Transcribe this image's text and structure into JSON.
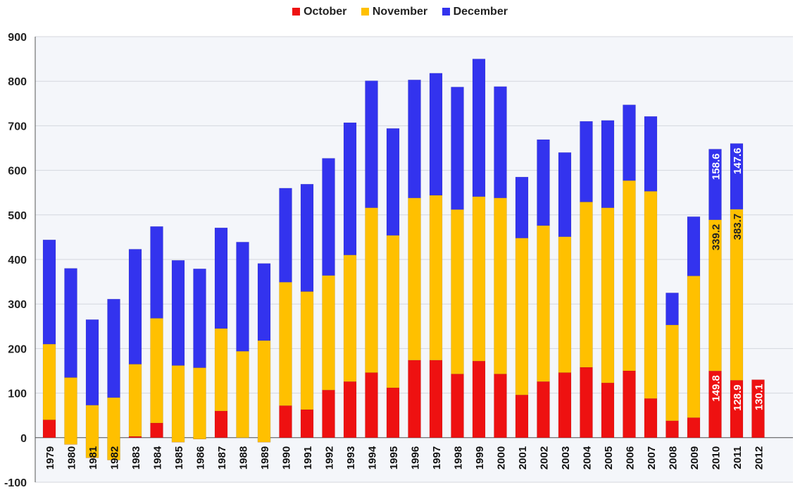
{
  "chart_data": {
    "type": "bar",
    "stacked": true,
    "categories": [
      "1979",
      "1980",
      "1981",
      "1982",
      "1983",
      "1984",
      "1985",
      "1986",
      "1987",
      "1988",
      "1989",
      "1990",
      "1991",
      "1992",
      "1993",
      "1994",
      "1995",
      "1996",
      "1997",
      "1998",
      "1999",
      "2000",
      "2001",
      "2002",
      "2003",
      "2004",
      "2005",
      "2006",
      "2007",
      "2008",
      "2009",
      "2010",
      "2011",
      "2012"
    ],
    "series": [
      {
        "name": "October",
        "color": "#ee1111",
        "values": [
          40,
          -15,
          -45,
          -50,
          3,
          33,
          -10,
          -3,
          60,
          0,
          -10,
          72,
          63,
          107,
          126,
          146,
          112,
          174,
          174,
          143,
          172,
          143,
          96,
          126,
          146,
          158,
          123,
          150,
          88,
          38,
          45,
          149.8,
          128.9,
          130.1
        ]
      },
      {
        "name": "November",
        "color": "#ffc000",
        "values": [
          170,
          150,
          118,
          140,
          162,
          235,
          172,
          160,
          185,
          194,
          228,
          277,
          265,
          257,
          284,
          370,
          342,
          364,
          370,
          369,
          369,
          395,
          352,
          350,
          305,
          371,
          393,
          427,
          465,
          215,
          318,
          339.2,
          383.7,
          null
        ]
      },
      {
        "name": "December",
        "color": "#3333ee",
        "values": [
          234,
          245,
          192,
          221,
          258,
          206,
          236,
          222,
          226,
          245,
          173,
          211,
          241,
          263,
          297,
          285,
          240,
          265,
          274,
          275,
          309,
          250,
          137,
          193,
          189,
          181,
          196,
          170,
          168,
          72,
          133,
          158.6,
          147.6,
          null
        ]
      }
    ],
    "data_labels": [
      {
        "category": "2010",
        "series": "October",
        "text": "149.8"
      },
      {
        "category": "2010",
        "series": "November",
        "text": "339.2"
      },
      {
        "category": "2010",
        "series": "December",
        "text": "158.6"
      },
      {
        "category": "2011",
        "series": "October",
        "text": "128.9"
      },
      {
        "category": "2011",
        "series": "November",
        "text": "383.7"
      },
      {
        "category": "2011",
        "series": "December",
        "text": "147.6"
      },
      {
        "category": "2012",
        "series": "October",
        "text": "130.1"
      }
    ],
    "y_ticks": [
      "-100",
      "0",
      "100",
      "200",
      "300",
      "400",
      "500",
      "600",
      "700",
      "800",
      "900"
    ],
    "ylim": [
      -100,
      900
    ],
    "grid": true,
    "legend_position": "top-center",
    "title": "",
    "xlabel": "",
    "ylabel": ""
  }
}
